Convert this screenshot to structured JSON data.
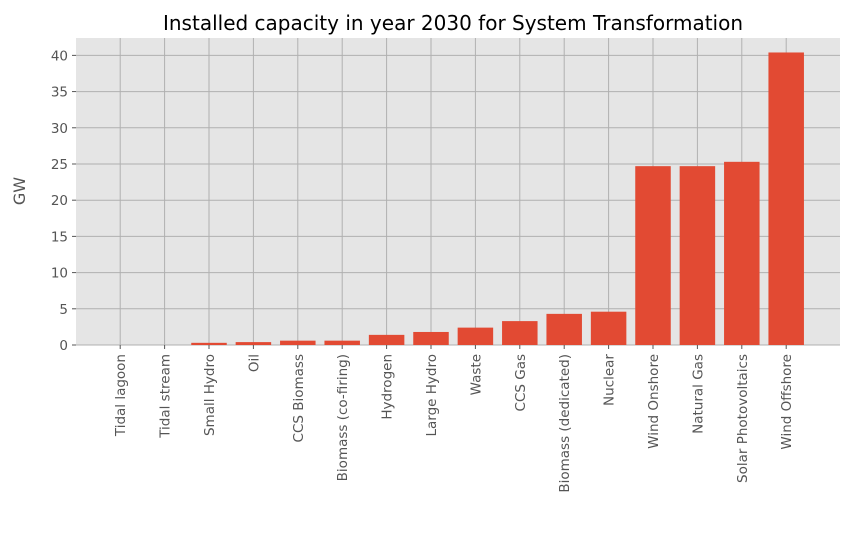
{
  "chart_data": {
    "type": "bar",
    "title": "Installed capacity in year 2030 for System Transformation",
    "xlabel": "",
    "ylabel": "GW",
    "ylim": [
      0,
      42.4
    ],
    "yticks": [
      0,
      5,
      10,
      15,
      20,
      25,
      30,
      35,
      40
    ],
    "grid": true,
    "bar_color": "#E24A33",
    "background_color": "#E5E5E5",
    "categories": [
      "Tidal lagoon",
      "Tidal stream",
      "Small Hydro",
      "Oil",
      "CCS Biomass",
      "Biomass (co-firing)",
      "Hydrogen",
      "Large Hydro",
      "Waste",
      "CCS Gas",
      "Biomass (dedicated)",
      "Nuclear",
      "Wind Onshore",
      "Natural Gas",
      "Solar Photovoltaics",
      "Wind Offshore"
    ],
    "values": [
      0,
      0,
      0.3,
      0.4,
      0.6,
      0.6,
      1.4,
      1.8,
      2.4,
      3.3,
      4.3,
      4.6,
      24.7,
      24.7,
      25.3,
      40.4
    ]
  }
}
